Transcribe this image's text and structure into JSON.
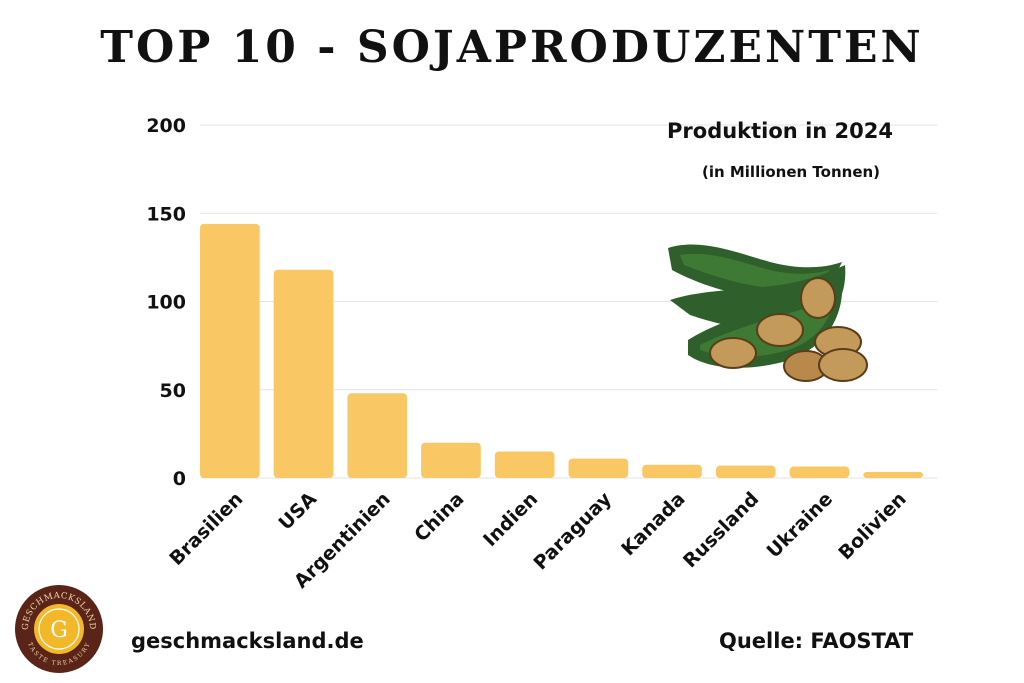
{
  "title": "TOP 10 - SOJAPRODUZENTEN",
  "footer": {
    "website": "geschmacksland.de",
    "source": "Quelle: FAOSTAT"
  },
  "logo": {
    "top_text": "GESCHMACKSLAND",
    "letter": "G",
    "bottom_text": "TASTE TREASURY"
  },
  "colors": {
    "bar": "#F9C764",
    "grid": "#E3E3E3",
    "pod_dark": "#2F5F2A",
    "pod_light": "#3F7A34",
    "bean": "#C49A5A",
    "logo_ring": "#5A2418",
    "logo_center": "#F2B82A"
  },
  "chart_data": {
    "type": "bar",
    "title": "Produktion in 2024",
    "subtitle": "(in Millionen Tonnen)",
    "categories": [
      "Brasilien",
      "USA",
      "Argentinien",
      "China",
      "Indien",
      "Paraguay",
      "Kanada",
      "Russland",
      "Ukraine",
      "Bolivien"
    ],
    "values": [
      144,
      118,
      48,
      20,
      15,
      11,
      7.5,
      7,
      6.5,
      3.5
    ],
    "ylim": [
      0,
      200
    ],
    "yticks": [
      "0",
      "50",
      "100",
      "150",
      "200"
    ],
    "grid": true,
    "xlabel": "",
    "ylabel": "",
    "legend": "top-right"
  }
}
